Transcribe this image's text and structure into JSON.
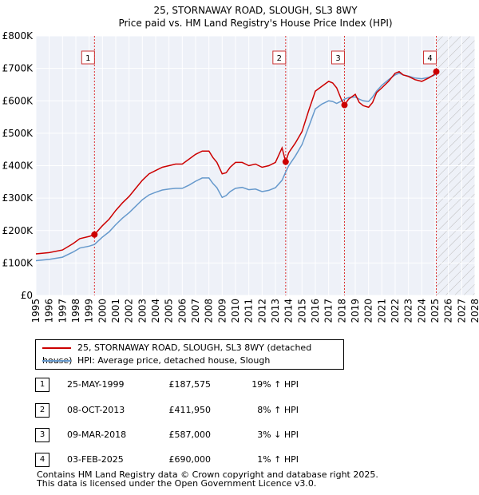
{
  "chart_data": {
    "type": "line",
    "title": "25, STORNAWAY ROAD, SLOUGH, SL3 8WY",
    "subtitle": "Price paid vs. HM Land Registry's House Price Index (HPI)",
    "xlabel": "",
    "ylabel": "",
    "xlim": [
      1995,
      2028
    ],
    "ylim": [
      0,
      800000
    ],
    "x_ticks": [
      "1995",
      "1996",
      "1997",
      "1998",
      "1999",
      "2000",
      "2001",
      "2002",
      "2003",
      "2004",
      "2005",
      "2006",
      "2007",
      "2008",
      "2009",
      "2010",
      "2011",
      "2012",
      "2013",
      "2014",
      "2015",
      "2016",
      "2017",
      "2018",
      "2019",
      "2020",
      "2021",
      "2022",
      "2023",
      "2024",
      "2025",
      "2026",
      "2027",
      "2028"
    ],
    "y_ticks": [
      {
        "value": 0,
        "label": "£0"
      },
      {
        "value": 100000,
        "label": "£100K"
      },
      {
        "value": 200000,
        "label": "£200K"
      },
      {
        "value": 300000,
        "label": "£300K"
      },
      {
        "value": 400000,
        "label": "£400K"
      },
      {
        "value": 500000,
        "label": "£500K"
      },
      {
        "value": 600000,
        "label": "£600K"
      },
      {
        "value": 700000,
        "label": "£700K"
      },
      {
        "value": 800000,
        "label": "£800K"
      }
    ],
    "forecast_start": 2025.1,
    "series": [
      {
        "name": "25, STORNAWAY ROAD, SLOUGH, SL3 8WY (detached house)",
        "color": "#cc0000",
        "x": [
          1995.0,
          1996.0,
          1997.0,
          1997.8,
          1998.3,
          1999.0,
          1999.4,
          2000.0,
          2000.5,
          2001.0,
          2001.5,
          2002.0,
          2002.5,
          2003.0,
          2003.5,
          2004.0,
          2004.5,
          2005.0,
          2005.5,
          2006.0,
          2006.5,
          2007.0,
          2007.5,
          2008.0,
          2008.3,
          2008.6,
          2009.0,
          2009.3,
          2009.6,
          2010.0,
          2010.5,
          2011.0,
          2011.5,
          2012.0,
          2012.5,
          2013.0,
          2013.5,
          2013.77,
          2014.0,
          2014.5,
          2015.0,
          2015.5,
          2016.0,
          2016.5,
          2017.0,
          2017.3,
          2017.6,
          2018.0,
          2018.19,
          2018.5,
          2019.0,
          2019.3,
          2019.6,
          2020.0,
          2020.3,
          2020.6,
          2021.0,
          2021.5,
          2022.0,
          2022.3,
          2022.6,
          2023.0,
          2023.5,
          2024.0,
          2024.5,
          2024.9,
          2025.09
        ],
        "y": [
          128000,
          132000,
          140000,
          160000,
          175000,
          182000,
          187575,
          215000,
          235000,
          262000,
          285000,
          305000,
          330000,
          355000,
          375000,
          385000,
          395000,
          400000,
          405000,
          405000,
          420000,
          435000,
          445000,
          445000,
          425000,
          410000,
          375000,
          378000,
          395000,
          410000,
          410000,
          400000,
          405000,
          395000,
          400000,
          410000,
          455000,
          411950,
          440000,
          470000,
          505000,
          570000,
          630000,
          645000,
          660000,
          655000,
          640000,
          600000,
          587000,
          605000,
          620000,
          595000,
          585000,
          580000,
          595000,
          625000,
          640000,
          660000,
          685000,
          690000,
          680000,
          675000,
          665000,
          660000,
          670000,
          680000,
          690000
        ]
      },
      {
        "name": "HPI: Average price, detached house, Slough",
        "color": "#6699cc",
        "x": [
          1995.0,
          1996.0,
          1997.0,
          1997.8,
          1998.3,
          1999.0,
          1999.4,
          2000.0,
          2000.5,
          2001.0,
          2001.5,
          2002.0,
          2002.5,
          2003.0,
          2003.5,
          2004.0,
          2004.5,
          2005.0,
          2005.5,
          2006.0,
          2006.5,
          2007.0,
          2007.5,
          2008.0,
          2008.3,
          2008.6,
          2009.0,
          2009.3,
          2009.6,
          2010.0,
          2010.5,
          2011.0,
          2011.5,
          2012.0,
          2012.5,
          2013.0,
          2013.5,
          2013.77,
          2014.0,
          2014.5,
          2015.0,
          2015.5,
          2016.0,
          2016.5,
          2017.0,
          2017.3,
          2017.6,
          2018.0,
          2018.19,
          2018.5,
          2019.0,
          2019.3,
          2019.6,
          2020.0,
          2020.3,
          2020.6,
          2021.0,
          2021.5,
          2022.0,
          2022.3,
          2022.6,
          2023.0,
          2023.5,
          2024.0,
          2024.5,
          2024.9,
          2025.09
        ],
        "y": [
          107000,
          111000,
          118000,
          134000,
          146000,
          152000,
          157000,
          180000,
          196000,
          218000,
          238000,
          255000,
          275000,
          295000,
          310000,
          318000,
          325000,
          328000,
          330000,
          330000,
          340000,
          352000,
          362000,
          362000,
          345000,
          332000,
          302000,
          308000,
          320000,
          330000,
          333000,
          326000,
          328000,
          320000,
          324000,
          332000,
          355000,
          380000,
          400000,
          430000,
          465000,
          520000,
          575000,
          590000,
          600000,
          598000,
          592000,
          600000,
          605000,
          610000,
          612000,
          605000,
          600000,
          598000,
          612000,
          630000,
          648000,
          665000,
          680000,
          685000,
          680000,
          676000,
          670000,
          668000,
          672000,
          678000,
          683000
        ]
      }
    ],
    "sale_markers": [
      {
        "label": "1",
        "x": 1999.4,
        "y": 187575
      },
      {
        "label": "2",
        "x": 2013.77,
        "y": 411950
      },
      {
        "label": "3",
        "x": 2018.19,
        "y": 587000
      },
      {
        "label": "4",
        "x": 2025.09,
        "y": 690000
      }
    ]
  },
  "legend": {
    "items": [
      {
        "label": "25, STORNAWAY ROAD, SLOUGH, SL3 8WY (detached house)",
        "color": "#cc0000"
      },
      {
        "label": "HPI: Average price, detached house, Slough",
        "color": "#6699cc"
      }
    ]
  },
  "sales": [
    {
      "num": "1",
      "date": "25-MAY-1999",
      "price": "£187,575",
      "hpi": "19% ↑ HPI"
    },
    {
      "num": "2",
      "date": "08-OCT-2013",
      "price": "£411,950",
      "hpi": "8% ↑ HPI"
    },
    {
      "num": "3",
      "date": "09-MAR-2018",
      "price": "£587,000",
      "hpi": "3% ↓ HPI"
    },
    {
      "num": "4",
      "date": "03-FEB-2025",
      "price": "£690,000",
      "hpi": "1% ↑ HPI"
    }
  ],
  "footer": {
    "line1": "Contains HM Land Registry data © Crown copyright and database right 2025.",
    "line2": "This data is licensed under the Open Government Licence v3.0."
  }
}
